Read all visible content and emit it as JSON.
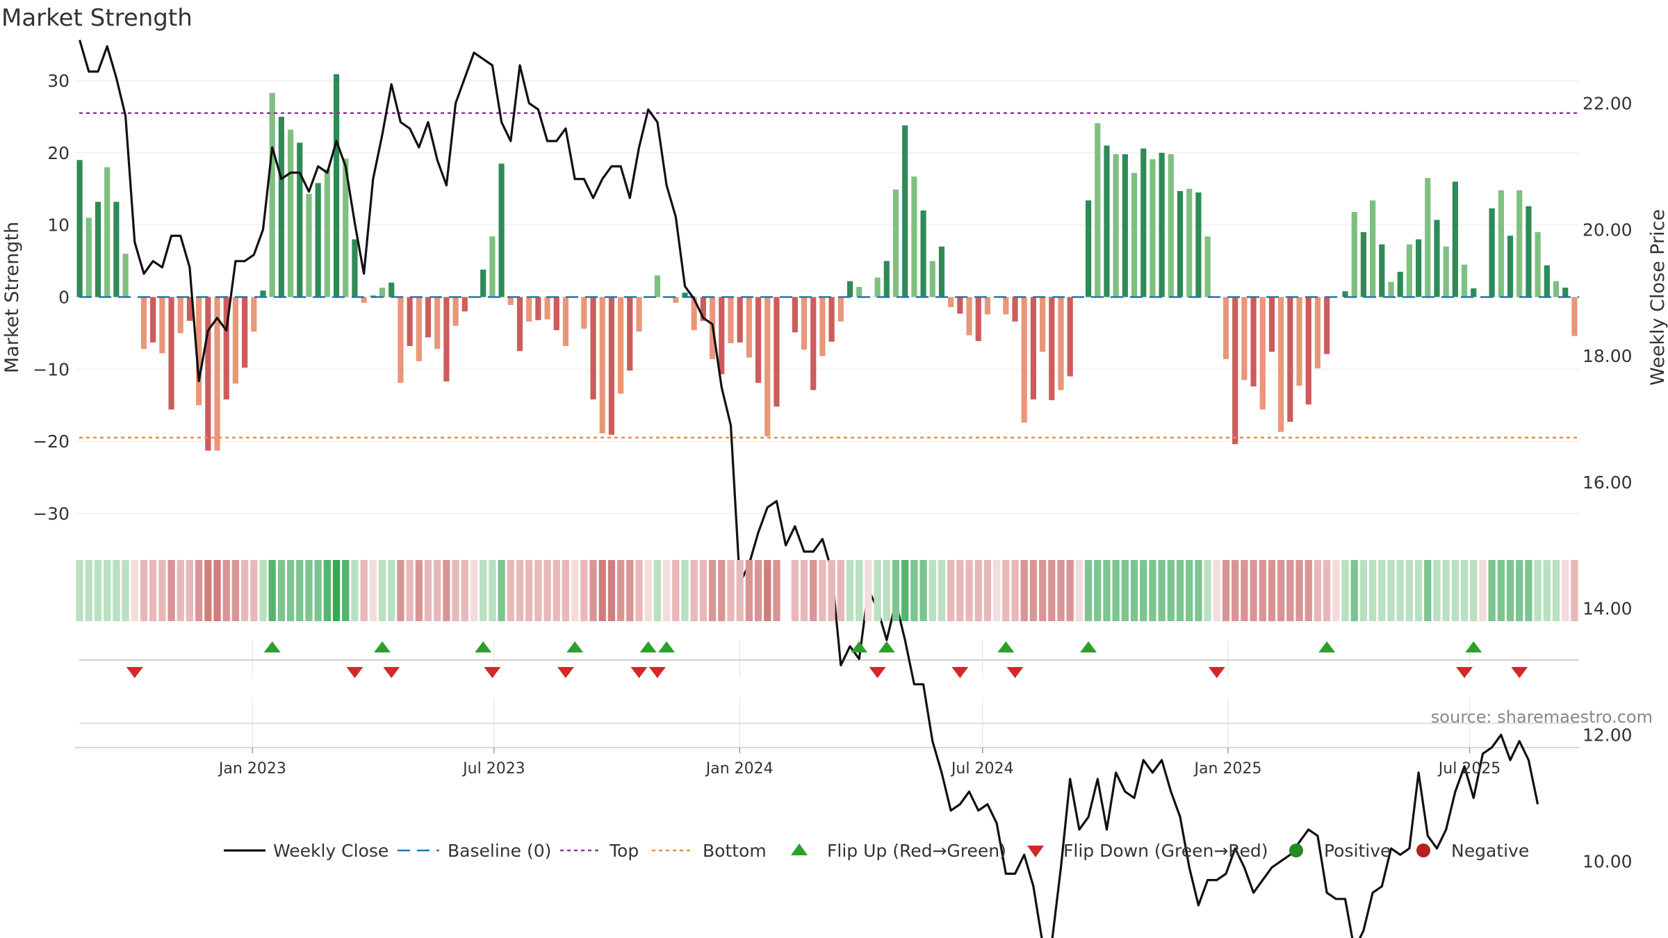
{
  "title": "Market Strength",
  "source": "source: sharemaestro.com",
  "colors": {
    "strong_green": "#2e8b57",
    "light_green": "#7fbf7f",
    "strong_red": "#cd5c5c",
    "light_red": "#e9967a",
    "close_line": "#111111",
    "baseline": "#1f77b4",
    "top_line": "#9c27b0",
    "bottom_line": "#f08c3c",
    "flip_up": "#2ca02c",
    "flip_down": "#d62728",
    "positive": "#228b22",
    "negative": "#b22222"
  },
  "legend": [
    {
      "key": "close",
      "label": "Weekly Close"
    },
    {
      "key": "baseline",
      "label": "Baseline (0)"
    },
    {
      "key": "top",
      "label": "Top"
    },
    {
      "key": "bottom",
      "label": "Bottom"
    },
    {
      "key": "flip_up",
      "label": "Flip Up (Red→Green)"
    },
    {
      "key": "flip_down",
      "label": "Flip Down (Green→Red)"
    },
    {
      "key": "positive",
      "label": "Positive"
    },
    {
      "key": "negative",
      "label": "Negative"
    }
  ],
  "chart_data": {
    "type": "bar",
    "title": "Market Strength",
    "ylabel": "Market Strength",
    "y2label": "Weekly Close Price",
    "ylim": [
      -33,
      33
    ],
    "y2lim": [
      8.47,
      23.0
    ],
    "yticks": [
      30,
      20,
      10,
      0,
      -10,
      -20,
      -30
    ],
    "ytick_labels": [
      "30",
      "20",
      "10",
      "0",
      "−10",
      "−20",
      "−30"
    ],
    "y2ticks": [
      22,
      20,
      18,
      16,
      14,
      12,
      10
    ],
    "y2tick_labels": [
      "22.00",
      "20.00",
      "18.00",
      "16.00",
      "14.00",
      "12.00",
      "10.00"
    ],
    "x_start": "2022-08-21",
    "x_end": "2025-09-21",
    "xticks": [
      "2023-01-01",
      "2023-07-01",
      "2024-01-01",
      "2024-07-01",
      "2025-01-01",
      "2025-07-01"
    ],
    "xtick_labels": [
      "Jan 2023",
      "Jul 2023",
      "Jan 2024",
      "Jul 2024",
      "Jan 2025",
      "Jul 2025"
    ],
    "top": 25.5,
    "bottom": -19.5,
    "grid": true,
    "legend_position": "bottom",
    "strength": [
      19,
      11,
      13.2,
      18,
      13.2,
      6,
      0,
      -7.2,
      -6.3,
      -7.8,
      -15.6,
      -5,
      -3.3,
      -15,
      -21.3,
      -21.3,
      -14.2,
      -12,
      -9.8,
      -4.8,
      0.9,
      28.3,
      25,
      23.2,
      21.4,
      14.3,
      15.8,
      17.7,
      30.9,
      19.2,
      8,
      -0.8,
      0.2,
      1.3,
      2,
      -11.9,
      -6.8,
      -8.9,
      -5.6,
      -7.2,
      -11.7,
      -4,
      -2,
      0,
      3.8,
      8.4,
      18.5,
      -1.1,
      -7.5,
      -3.4,
      -3.2,
      -3.1,
      -4.6,
      -6.8,
      0,
      -4.4,
      -14.2,
      -18.9,
      -19.1,
      -13.4,
      -10.2,
      -4.8,
      0,
      3,
      0,
      -0.8,
      0.6,
      -4.6,
      -3.3,
      -8.6,
      -10.7,
      -6.4,
      -6.3,
      -8.4,
      -11.9,
      -19.3,
      -15.2,
      0,
      -4.9,
      -7.3,
      -12.9,
      -8.2,
      -6.2,
      -3.4,
      2.2,
      1.4,
      0,
      2.7,
      5,
      14.9,
      23.8,
      16.7,
      12,
      5,
      7,
      -1.4,
      -2.3,
      -5.3,
      -6.1,
      -2.4,
      0.1,
      -2.4,
      -3.4,
      -17.4,
      -14.2,
      -7.6,
      -14.3,
      -12.9,
      -11,
      0,
      13.4,
      24.1,
      21,
      19.8,
      19.8,
      17.2,
      20.6,
      19.1,
      20,
      19.8,
      14.7,
      15,
      14.5,
      8.4,
      0,
      -8.6,
      -20.4,
      -11.5,
      -12.4,
      -15.6,
      -7.6,
      -18.7,
      -17.3,
      -12.3,
      -14.9,
      -9.9,
      -7.9,
      0,
      0.8,
      11.8,
      9,
      13.4,
      7.3,
      2.1,
      3.5,
      7.3,
      8,
      16.5,
      10.7,
      7,
      16,
      4.5,
      1.2,
      0,
      12.3,
      14.8,
      8.5,
      14.8,
      12.6,
      9,
      4.4,
      2.2,
      1.3,
      -5.4
    ],
    "close": [
      23,
      22.5,
      22.5,
      22.9,
      22.4,
      21.8,
      19.8,
      19.3,
      19.5,
      19.4,
      19.9,
      19.9,
      19.4,
      17.6,
      18.4,
      18.6,
      18.4,
      19.5,
      19.5,
      19.6,
      20,
      21.3,
      20.8,
      20.9,
      20.9,
      20.6,
      21.0,
      20.9,
      21.4,
      21.0,
      20.1,
      19.3,
      20.8,
      21.5,
      22.3,
      21.7,
      21.6,
      21.3,
      21.7,
      21.1,
      20.7,
      22.0,
      22.4,
      22.8,
      22.7,
      22.6,
      21.7,
      21.4,
      22.6,
      22.0,
      21.9,
      21.4,
      21.4,
      21.6,
      20.8,
      20.8,
      20.5,
      20.8,
      21.0,
      21.0,
      20.5,
      21.3,
      21.9,
      21.7,
      20.7,
      20.2,
      19.1,
      18.9,
      18.6,
      18.5,
      17.5,
      16.9,
      14.4,
      14.7,
      15.2,
      15.6,
      15.7,
      15.0,
      15.3,
      14.9,
      14.9,
      15.1,
      14.6,
      13.1,
      13.4,
      13.2,
      14.3,
      14.0,
      13.5,
      14.1,
      13.5,
      12.8,
      12.8,
      11.9,
      11.4,
      10.8,
      10.9,
      11.1,
      10.8,
      10.9,
      10.6,
      9.8,
      9.8,
      10.1,
      9.6,
      8.7,
      8.7,
      9.9,
      11.3,
      10.5,
      10.7,
      11.3,
      10.5,
      11.4,
      11.1,
      11.0,
      11.6,
      11.4,
      11.6,
      11.1,
      10.7,
      9.9,
      9.3,
      9.7,
      9.7,
      9.8,
      10.2,
      9.9,
      9.5,
      9.7,
      9.9,
      10.0,
      10.1,
      10.3,
      10.5,
      10.4,
      9.5,
      9.4,
      9.4,
      8.6,
      8.9,
      9.5,
      9.6,
      10.2,
      10.1,
      10.2,
      11.4,
      10.4,
      10.2,
      10.5,
      11.1,
      11.5,
      11.0,
      11.7,
      11.8,
      12.0,
      11.6,
      11.9,
      11.6,
      10.9
    ],
    "strip_levels": [
      1,
      1,
      1,
      1,
      1,
      1,
      0,
      -1,
      -1,
      -1,
      -2,
      -1,
      -1,
      -2,
      -3,
      -3,
      -2,
      -2,
      -1,
      -1,
      1,
      3,
      2,
      2,
      2,
      2,
      2,
      3,
      4,
      3,
      1,
      -1,
      0,
      1,
      1,
      -2,
      -1,
      -2,
      -1,
      -1,
      -2,
      -1,
      -1,
      0,
      1,
      1,
      2,
      -1,
      -1,
      -1,
      -1,
      -1,
      -1,
      -1,
      0,
      -1,
      -2,
      -3,
      -3,
      -2,
      -2,
      -1,
      0,
      1,
      0,
      -1,
      1,
      -1,
      -1,
      -2,
      -2,
      -1,
      -1,
      -2,
      -2,
      -3,
      -2,
      null,
      -1,
      -1,
      -2,
      -1,
      -1,
      -1,
      1,
      1,
      0,
      1,
      1,
      2,
      3,
      2,
      2,
      1,
      1,
      -1,
      -1,
      -1,
      -1,
      -1,
      0,
      -1,
      -1,
      -2,
      -2,
      -2,
      -2,
      -2,
      -2,
      0,
      2,
      2,
      2,
      2,
      2,
      2,
      2,
      2,
      2,
      2,
      2,
      2,
      2,
      1,
      0,
      -2,
      -2,
      -2,
      -2,
      -2,
      -2,
      -2,
      -2,
      -2,
      -2,
      -1,
      -1,
      0,
      1,
      2,
      1,
      1,
      1,
      1,
      1,
      1,
      1,
      2,
      1,
      1,
      1,
      1,
      1,
      0,
      2,
      2,
      2,
      2,
      2,
      1,
      1,
      1,
      0,
      -1
    ],
    "flip_up_weeks": [
      21,
      33,
      44,
      54,
      62,
      64,
      85,
      88,
      101,
      110,
      136,
      152
    ],
    "flip_down_weeks": [
      6,
      30,
      34,
      45,
      53,
      61,
      63,
      87,
      96,
      102,
      124,
      151,
      157
    ]
  }
}
